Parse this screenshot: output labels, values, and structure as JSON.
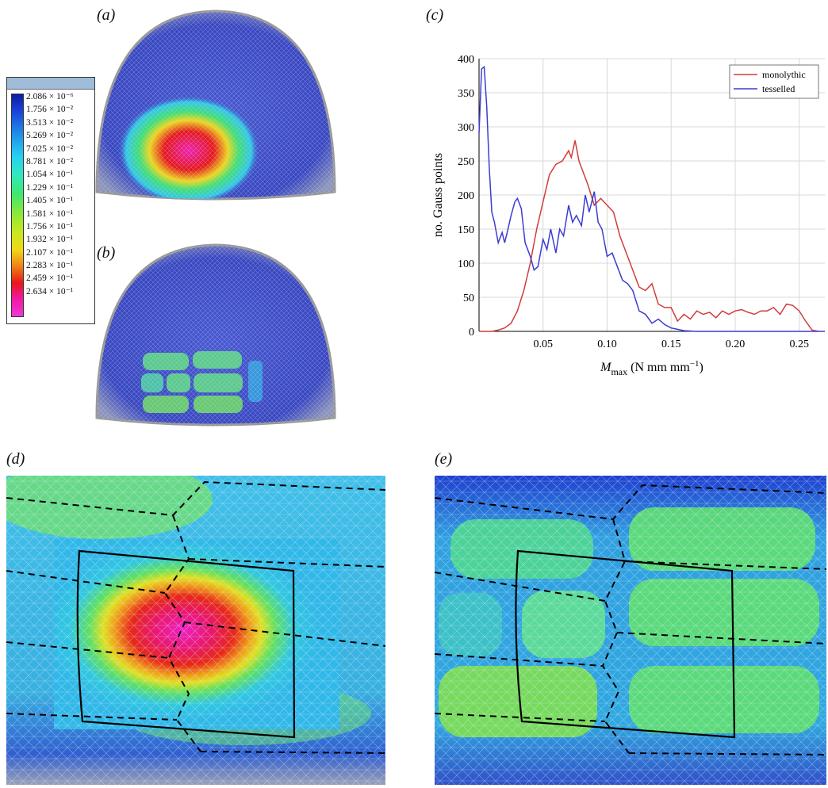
{
  "panel_labels": {
    "a": "(a)",
    "b": "(b)",
    "c": "(c)",
    "d": "(d)",
    "e": "(e)"
  },
  "legend": {
    "values": [
      "2.086 × 10⁻⁶",
      "1.756 × 10⁻²",
      "3.513 × 10⁻²",
      "5.269 × 10⁻²",
      "7.025 × 10⁻²",
      "8.781 × 10⁻²",
      "1.054 × 10⁻¹",
      "1.229 × 10⁻¹",
      "1.405 × 10⁻¹",
      "1.581 × 10⁻¹",
      "1.756 × 10⁻¹",
      "1.932 × 10⁻¹",
      "2.107 × 10⁻¹",
      "2.283 × 10⁻¹",
      "2.459 × 10⁻¹",
      "2.634 × 10⁻¹"
    ]
  },
  "colors": {
    "monolythic": "#d23c3c",
    "tesselled": "#3c3cd2"
  },
  "chart_data": {
    "type": "line",
    "xlabel": "M_max (N mm mm⁻¹)",
    "xlabel_main": "M",
    "xlabel_sub": "max",
    "xlabel_unit": " (N mm mm",
    "xlabel_sup": "−1",
    "xlabel_close": ")",
    "ylabel": "no. Gauss points",
    "xlim": [
      0,
      0.27
    ],
    "ylim": [
      0,
      400
    ],
    "xticks": [
      "0.05",
      "0.10",
      "0.15",
      "0.20",
      "0.25"
    ],
    "yticks": [
      "0",
      "50",
      "100",
      "150",
      "200",
      "250",
      "300",
      "350",
      "400"
    ],
    "grid": true,
    "legend_position": "top-right",
    "series": [
      {
        "name": "monolythic",
        "x": [
          0,
          0.005,
          0.01,
          0.015,
          0.02,
          0.025,
          0.03,
          0.035,
          0.04,
          0.045,
          0.05,
          0.055,
          0.06,
          0.065,
          0.07,
          0.072,
          0.075,
          0.078,
          0.08,
          0.085,
          0.09,
          0.095,
          0.1,
          0.105,
          0.11,
          0.115,
          0.12,
          0.125,
          0.13,
          0.135,
          0.14,
          0.145,
          0.15,
          0.155,
          0.16,
          0.165,
          0.17,
          0.175,
          0.18,
          0.185,
          0.19,
          0.195,
          0.2,
          0.205,
          0.21,
          0.215,
          0.22,
          0.225,
          0.23,
          0.235,
          0.24,
          0.245,
          0.25,
          0.255,
          0.26,
          0.265
        ],
        "y": [
          0,
          0,
          0,
          2,
          5,
          12,
          30,
          60,
          100,
          150,
          190,
          230,
          245,
          250,
          265,
          255,
          280,
          250,
          240,
          215,
          185,
          195,
          185,
          175,
          140,
          115,
          90,
          65,
          60,
          70,
          40,
          35,
          35,
          15,
          25,
          18,
          30,
          25,
          28,
          20,
          30,
          25,
          30,
          32,
          28,
          25,
          30,
          30,
          35,
          25,
          40,
          38,
          30,
          15,
          2,
          0
        ]
      },
      {
        "name": "tesselled",
        "x": [
          0,
          0.002,
          0.004,
          0.006,
          0.008,
          0.01,
          0.012,
          0.015,
          0.018,
          0.02,
          0.022,
          0.025,
          0.028,
          0.03,
          0.033,
          0.036,
          0.04,
          0.043,
          0.046,
          0.05,
          0.053,
          0.056,
          0.06,
          0.063,
          0.066,
          0.07,
          0.073,
          0.076,
          0.08,
          0.083,
          0.086,
          0.09,
          0.093,
          0.096,
          0.1,
          0.104,
          0.108,
          0.112,
          0.116,
          0.12,
          0.125,
          0.13,
          0.135,
          0.14,
          0.145,
          0.15,
          0.155,
          0.16,
          0.17,
          0.18,
          0.2,
          0.22,
          0.24,
          0.26,
          0.27
        ],
        "y": [
          290,
          385,
          388,
          330,
          240,
          175,
          160,
          130,
          145,
          130,
          145,
          170,
          190,
          195,
          180,
          130,
          110,
          90,
          95,
          135,
          120,
          150,
          115,
          150,
          140,
          185,
          160,
          170,
          155,
          200,
          175,
          205,
          160,
          150,
          110,
          115,
          95,
          75,
          70,
          60,
          30,
          25,
          12,
          18,
          10,
          5,
          3,
          1,
          0,
          0,
          0,
          0,
          0,
          0,
          0
        ]
      }
    ]
  }
}
